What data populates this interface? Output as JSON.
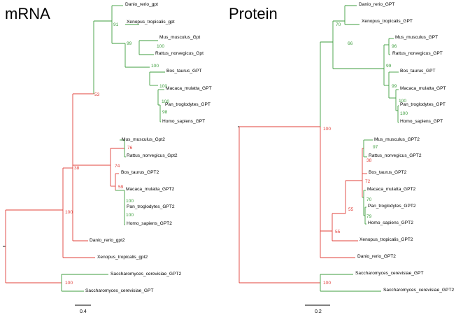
{
  "colors": {
    "green": "#3d9e3d",
    "red": "#e0403a",
    "black": "#000000"
  },
  "panels": [
    {
      "title": "mRNA",
      "scale_bar_label": "0.4",
      "leaves": [
        "Danio_rerio_gpt",
        "Xenopus_tropicalis_gpt",
        "Mus_musculus_Gpt",
        "Rattus_norvegicus_Gpt",
        "Bos_taurus_GPT",
        "Macaca_mulatta_GPT",
        "Pan_troglodytes_GPT",
        "Homo_sapiens_GPT",
        "Mus_musculus_Gpt2",
        "Rattus_norvegicus_Gpt2",
        "Bos_taurus_GPT2",
        "Macaca_mulatta_GPT2",
        "Pan_troglodytes_GPT2",
        "Homo_sapiens_GPT2",
        "Danio_rerio_gpt2",
        "Xenopus_tropicalis_gpt2",
        "Saccharomyces_cerevisiae_GPT2",
        "Saccharomyces_cerevisiae_GPT"
      ],
      "bootstrap": [
        "91",
        "99",
        "100",
        "100",
        "100",
        "98",
        "76",
        "74",
        "59",
        "100",
        "100",
        "38",
        "53",
        "100",
        "100"
      ]
    },
    {
      "title": "Protein",
      "scale_bar_label": "0.2",
      "leaves": [
        "Danio_rerio_GPT",
        "Xenopus_tropicalis_GPT",
        "Mus_musculus_GPT",
        "Rattus_norvegicus_GPT",
        "Bos_taurus_GPT",
        "Macaca_mulatta_GPT",
        "Pan_troglodytes_GPT",
        "Homo_sapiens_GPT",
        "Mus_musculus_GPT2",
        "Rattus_norvegicus_GPT2",
        "Bos_taurus_GPT2",
        "Macaca_mulatta_GPT2",
        "Pan_troglodytes_GPT2",
        "Homo_sapiens_GPT2",
        "Xenopus_tropicalis_GPT2",
        "Danio_rerio_GPT2",
        "Saccharomyces_cerevisiae_GPT",
        "Saccharomyces_cerevisiae_GPT2"
      ],
      "bootstrap": [
        "70",
        "66",
        "96",
        "99",
        "99",
        "100",
        "100",
        "97",
        "38",
        "72",
        "70",
        "79",
        "55",
        "55",
        "100",
        "100"
      ]
    }
  ]
}
